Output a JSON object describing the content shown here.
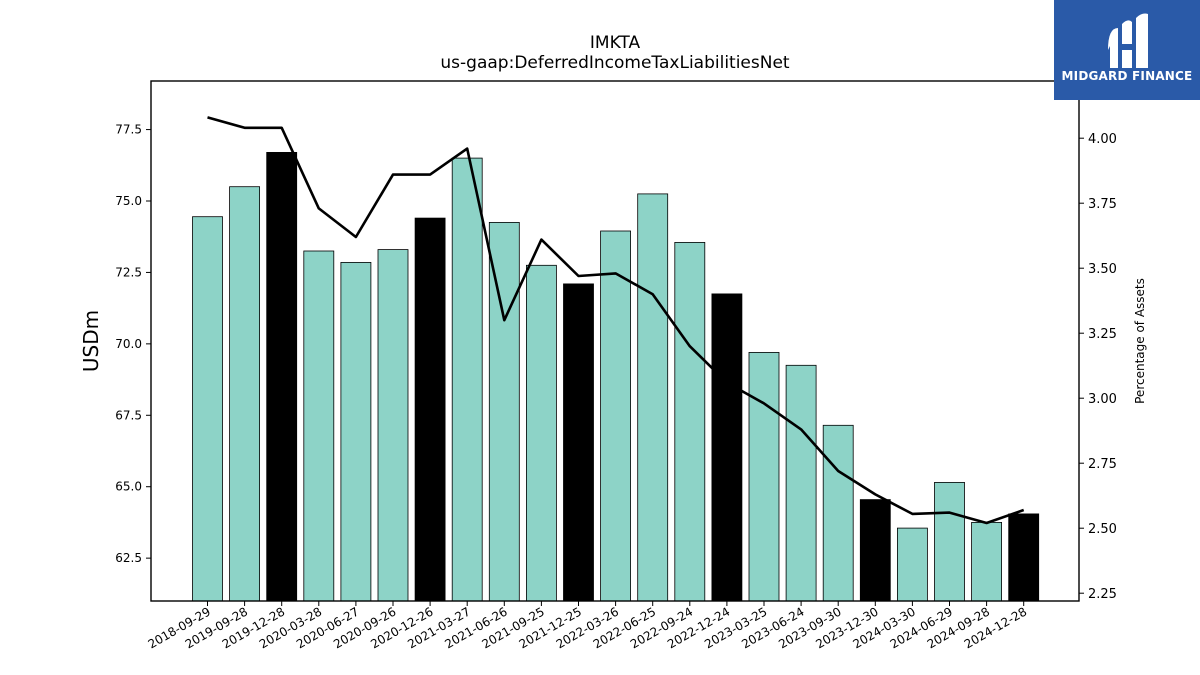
{
  "chart_data": {
    "type": "bar",
    "title": "IMKTA",
    "subtitle": "us-gaap:DeferredIncomeTaxLiabilitiesNet",
    "ylabel": "USDm",
    "y2label": "Percentage of Assets",
    "ylim": [
      61.0,
      79.2
    ],
    "y2lim": [
      2.22,
      4.22
    ],
    "yticks": [
      "62.5",
      "65.0",
      "67.5",
      "70.0",
      "72.5",
      "75.0",
      "77.5"
    ],
    "y2ticks": [
      "2.25",
      "2.50",
      "2.75",
      "3.00",
      "3.25",
      "3.50",
      "3.75",
      "4.00"
    ],
    "categories": [
      "2018-09-29",
      "2019-09-28",
      "2019-12-28",
      "2020-03-28",
      "2020-06-27",
      "2020-09-26",
      "2020-12-26",
      "2021-03-27",
      "2021-06-26",
      "2021-09-25",
      "2021-12-25",
      "2022-03-26",
      "2022-06-25",
      "2022-09-24",
      "2022-12-24",
      "2023-03-25",
      "2023-06-24",
      "2023-09-30",
      "2023-12-30",
      "2024-03-30",
      "2024-06-29",
      "2024-09-28",
      "2024-12-28"
    ],
    "series": [
      {
        "kind": "bar",
        "values": [
          74.45,
          75.5,
          76.7,
          73.25,
          72.85,
          73.3,
          74.4,
          76.5,
          74.25,
          72.75,
          72.1,
          73.95,
          75.25,
          73.55,
          71.75,
          69.7,
          69.25,
          67.15,
          64.55,
          63.55,
          65.15,
          63.75,
          64.05
        ],
        "highlight": [
          false,
          false,
          true,
          false,
          false,
          false,
          true,
          false,
          false,
          false,
          true,
          false,
          false,
          false,
          true,
          false,
          false,
          false,
          true,
          false,
          false,
          false,
          true
        ]
      },
      {
        "kind": "line",
        "axis": "right",
        "values": [
          4.08,
          4.04,
          4.04,
          3.73,
          3.62,
          3.86,
          3.86,
          3.96,
          3.3,
          3.61,
          3.47,
          3.48,
          3.4,
          3.2,
          3.06,
          2.98,
          2.88,
          2.72,
          2.63,
          2.555,
          2.56,
          2.52,
          2.57
        ]
      }
    ],
    "colors": {
      "bar": "#8dd3c7",
      "bar_highlight": "#000000",
      "line": "#000000",
      "bar_edge": "#000000"
    },
    "grid": false,
    "legend": "none"
  },
  "logo": {
    "text": "MIDGARD FINANCE",
    "background": "#2a5aa8"
  }
}
